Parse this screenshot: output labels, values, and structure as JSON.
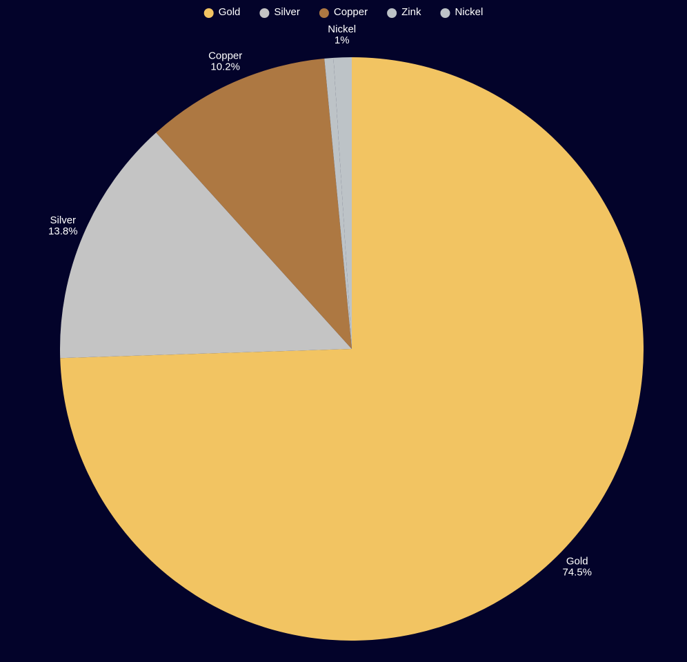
{
  "chart_data": {
    "type": "pie",
    "categories": [
      "Gold",
      "Silver",
      "Copper",
      "Zink",
      "Nickel"
    ],
    "values": [
      74.5,
      13.8,
      10.2,
      0.5,
      1
    ],
    "value_labels": [
      "74.5%",
      "13.8%",
      "10.2%",
      null,
      "1%"
    ],
    "colors": [
      "#f2c462",
      "#c4c4c4",
      "#ad7842",
      "#bdc3c7",
      "#bdc3c7"
    ],
    "legend": "top"
  }
}
